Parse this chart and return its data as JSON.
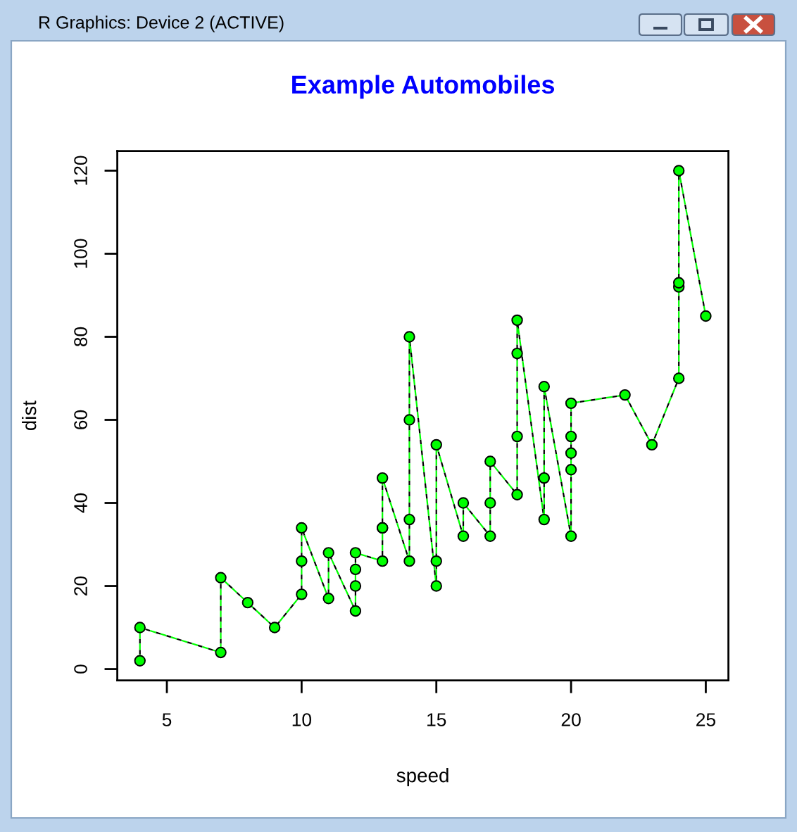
{
  "chart_data": {
    "type": "line",
    "title": "Example Automobiles",
    "xlabel": "speed",
    "ylabel": "dist",
    "annotations": [
      "R Graphics: Device 2 (ACTIVE)"
    ],
    "x": [
      4,
      4,
      7,
      7,
      8,
      9,
      10,
      10,
      10,
      11,
      11,
      12,
      12,
      12,
      12,
      13,
      13,
      13,
      13,
      14,
      14,
      14,
      14,
      15,
      15,
      15,
      16,
      16,
      17,
      17,
      17,
      18,
      18,
      18,
      18,
      19,
      19,
      19,
      20,
      20,
      20,
      20,
      20,
      22,
      23,
      24,
      24,
      24,
      24,
      25
    ],
    "series": [
      {
        "color": "#00ff00",
        "values": [
          2,
          10,
          4,
          22,
          16,
          10,
          18,
          26,
          34,
          17,
          28,
          14,
          20,
          24,
          28,
          26,
          34,
          34,
          46,
          26,
          36,
          60,
          80,
          20,
          26,
          54,
          32,
          40,
          32,
          40,
          50,
          42,
          56,
          76,
          84,
          36,
          46,
          68,
          32,
          48,
          52,
          56,
          64,
          66,
          54,
          70,
          92,
          93,
          120,
          85
        ]
      }
    ],
    "xlim": [
      3.16,
      25.84
    ],
    "ylim": [
      -2.72,
      124.72
    ],
    "xticks": [
      5,
      10,
      15,
      20,
      25
    ],
    "yticks": [
      0,
      20,
      40,
      60,
      80,
      100,
      120
    ],
    "marker": "circle",
    "line_style": "dashed"
  }
}
